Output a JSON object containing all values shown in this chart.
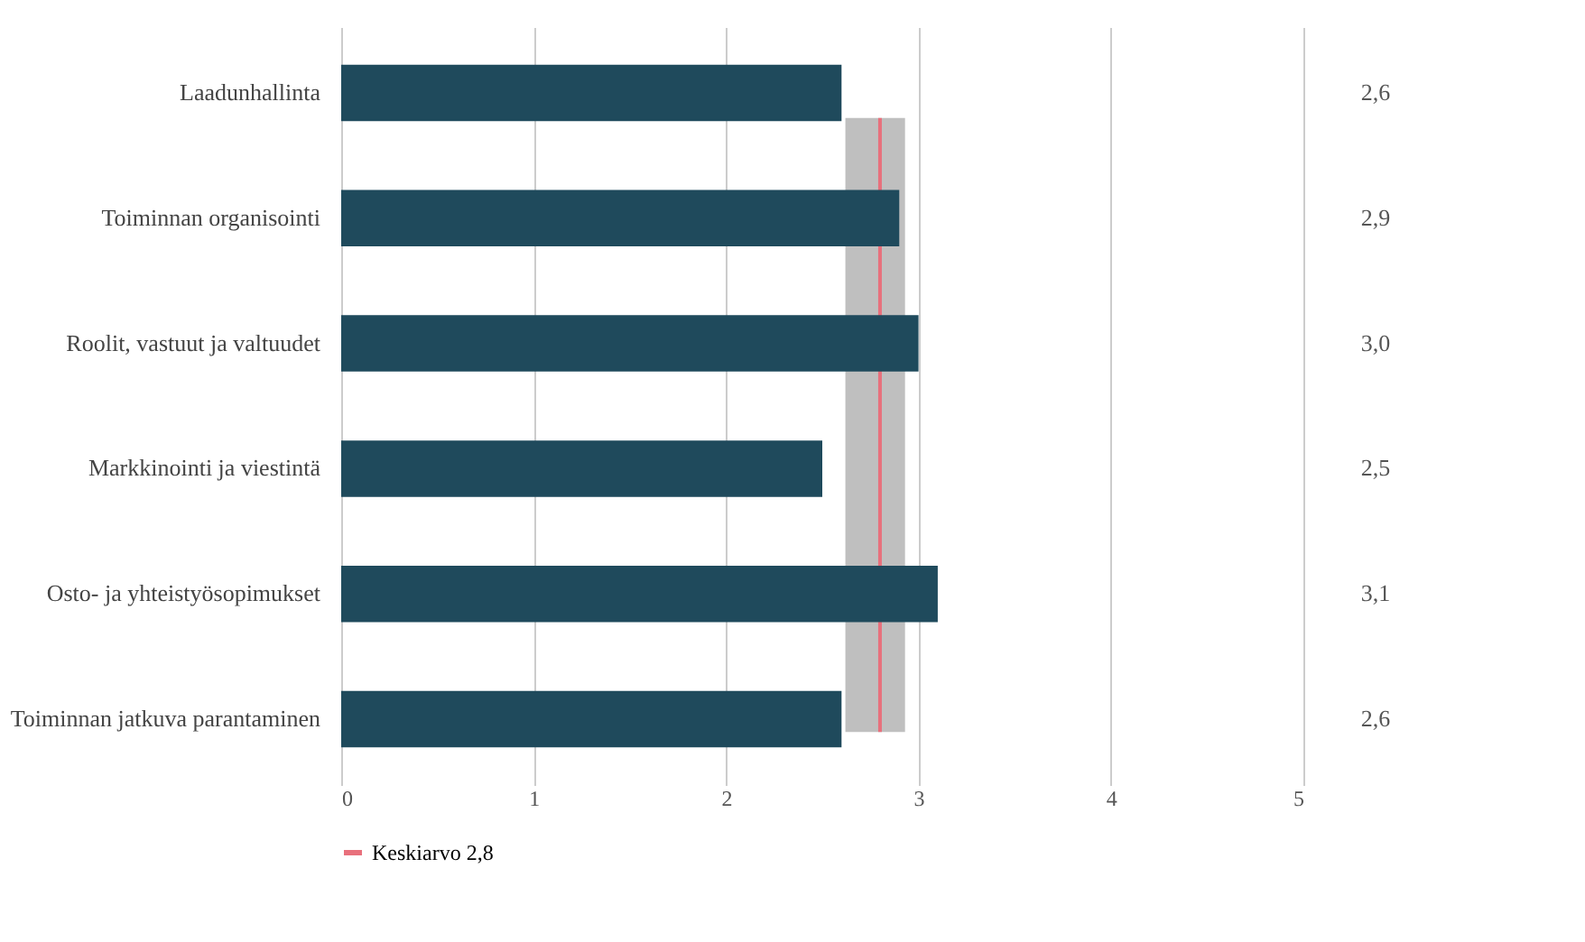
{
  "chart_data": {
    "type": "bar",
    "orientation": "horizontal",
    "categories": [
      "Laadunhallinta",
      "Toiminnan organisointi",
      "Roolit, vastuut ja valtuudet",
      "Markkinointi ja viestintä",
      "Osto- ja yhteistyösopimukset",
      "Toiminnan jatkuva parantaminen"
    ],
    "values": [
      2.6,
      2.9,
      3.0,
      2.5,
      3.1,
      2.6
    ],
    "value_labels": [
      "2,6",
      "2,9",
      "3,0",
      "2,5",
      "3,1",
      "2,6"
    ],
    "color": "#1f4a5c",
    "xlim": [
      0,
      5
    ],
    "xticks": [
      0,
      1,
      2,
      3,
      4,
      5
    ],
    "grid": "x",
    "bands": [
      {
        "axis": "x",
        "from": 2.62,
        "to": 2.93,
        "color": "#bfbfbf"
      }
    ],
    "ref_lines": [
      {
        "axis": "x",
        "value": 2.8,
        "label": "Keskiarvo 2,8",
        "color": "#e8707c"
      }
    ],
    "legend": "bottom"
  }
}
